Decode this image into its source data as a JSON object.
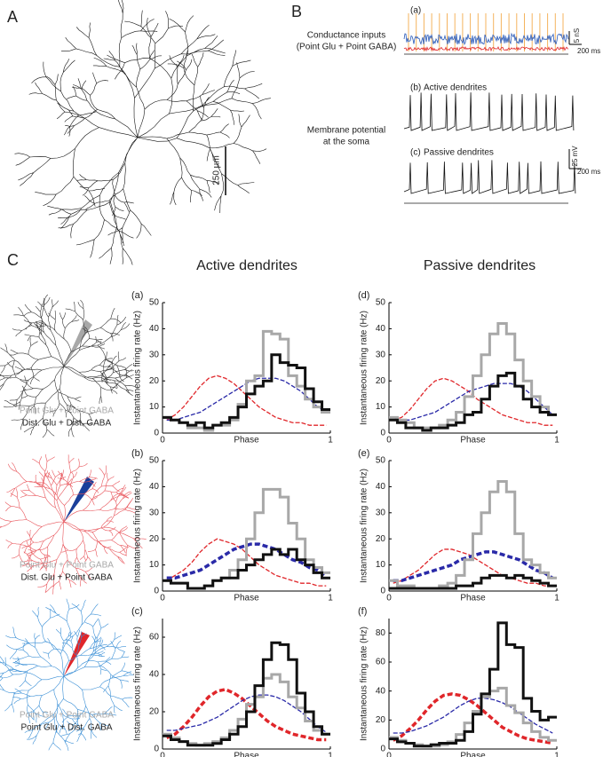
{
  "figure": {
    "panel_labels": [
      "A",
      "B",
      "C"
    ],
    "scale_bar": "250 µm",
    "traces": {
      "label_a": "(a)",
      "conductance_label": [
        "Conductance inputs",
        "(Point Glu + Point GABA)"
      ],
      "conductance_scale": [
        "5 nS",
        "200 ms"
      ],
      "label_b": "(b)",
      "title_b": "Active dendrites",
      "membrane_label": [
        "Membrane potential",
        "at the soma"
      ],
      "label_c": "(c)",
      "title_c": "Passive dendrites",
      "voltage_scale": [
        "25 mV",
        "200 ms"
      ]
    },
    "column_titles": [
      "Active dendrites",
      "Passive dendrites"
    ],
    "row_legends": [
      [
        "Point Glu + Point GABA",
        "Dist. Glu + Dist. GABA"
      ],
      [
        "Point Glu + Point GABA",
        "Dist. Glu + Point GABA"
      ],
      [
        "Point Glu + Point GABA",
        "Point Glu + Dist. GABA"
      ]
    ]
  },
  "chart_data": [
    {
      "type": "line",
      "panel": "(a)",
      "ylabel": "Instantaneous firing rate (Hz)",
      "xlabel": "Phase",
      "x": [
        0.025,
        0.075,
        0.125,
        0.175,
        0.225,
        0.275,
        0.325,
        0.375,
        0.425,
        0.475,
        0.525,
        0.575,
        0.625,
        0.675,
        0.725,
        0.775,
        0.825,
        0.875,
        0.925,
        0.975
      ],
      "xlim": [
        0,
        1
      ],
      "xticks": [
        0,
        1
      ],
      "ylim": [
        0,
        50
      ],
      "yticks": [
        0,
        10,
        20,
        30,
        40,
        50
      ],
      "series": [
        {
          "color": "#e0262a",
          "style": "dashed",
          "width": 1.3,
          "values": [
            5,
            7,
            10,
            14,
            18,
            21,
            22,
            21,
            19,
            16,
            13,
            10,
            8,
            6,
            5,
            4,
            4,
            3,
            3,
            3
          ]
        },
        {
          "color": "#2a2aa8",
          "style": "dashed",
          "width": 1.3,
          "values": [
            5,
            5,
            6,
            7,
            8,
            10,
            12,
            14,
            16,
            18,
            20,
            21,
            21,
            21,
            20,
            18,
            16,
            13,
            10,
            8
          ]
        },
        {
          "color": "#a8a8a8",
          "style": "step",
          "width": 3,
          "values": [
            6,
            5,
            4,
            2,
            2,
            1,
            3,
            3,
            5,
            11,
            20,
            22,
            39,
            38,
            36,
            22,
            18,
            13,
            10,
            8
          ]
        },
        {
          "color": "#111111",
          "style": "step",
          "width": 3,
          "values": [
            6,
            5,
            4,
            3,
            4,
            2,
            3,
            4,
            6,
            10,
            15,
            18,
            20,
            30,
            27,
            26,
            25,
            17,
            12,
            9
          ]
        }
      ]
    },
    {
      "type": "line",
      "panel": "(b)",
      "ylabel": "Instantaneous firing rate (Hz)",
      "xlabel": "Phase",
      "x": [
        0.025,
        0.075,
        0.125,
        0.175,
        0.225,
        0.275,
        0.325,
        0.375,
        0.425,
        0.475,
        0.525,
        0.575,
        0.625,
        0.675,
        0.725,
        0.775,
        0.825,
        0.875,
        0.925,
        0.975
      ],
      "xlim": [
        0,
        1
      ],
      "xticks": [
        0,
        1
      ],
      "ylim": [
        0,
        50
      ],
      "yticks": [
        0,
        10,
        20,
        30,
        40,
        50
      ],
      "series": [
        {
          "color": "#e0262a",
          "style": "dashed",
          "width": 1.3,
          "values": [
            4,
            6,
            8,
            11,
            15,
            18,
            20,
            19,
            18,
            16,
            13,
            10,
            8,
            6,
            5,
            4,
            3,
            3,
            2,
            2
          ]
        },
        {
          "color": "#2a2aa8",
          "style": "dashed",
          "width": 3.5,
          "values": [
            5,
            5,
            6,
            7,
            8,
            10,
            12,
            14,
            16,
            17,
            18,
            18,
            17,
            16,
            14,
            12,
            11,
            9,
            8,
            6
          ]
        },
        {
          "color": "#a8a8a8",
          "style": "step",
          "width": 3,
          "values": [
            4,
            3,
            3,
            1,
            1,
            2,
            4,
            5,
            8,
            12,
            20,
            30,
            39,
            39,
            36,
            26,
            20,
            12,
            9,
            7
          ]
        },
        {
          "color": "#111111",
          "style": "step",
          "width": 3,
          "values": [
            4,
            3,
            3,
            1,
            1,
            2,
            4,
            5,
            5,
            8,
            10,
            12,
            14,
            16,
            14,
            16,
            12,
            10,
            7,
            5
          ]
        }
      ]
    },
    {
      "type": "line",
      "panel": "(c)",
      "ylabel": "Instantaneous firing rate (Hz)",
      "xlabel": "Phase",
      "x": [
        0.025,
        0.075,
        0.125,
        0.175,
        0.225,
        0.275,
        0.325,
        0.375,
        0.425,
        0.475,
        0.525,
        0.575,
        0.625,
        0.675,
        0.725,
        0.775,
        0.825,
        0.875,
        0.925,
        0.975
      ],
      "xlim": [
        0,
        1
      ],
      "xticks": [
        0,
        1
      ],
      "ylim": [
        0,
        70
      ],
      "yticks": [
        0,
        20,
        40,
        60
      ],
      "series": [
        {
          "color": "#e0262a",
          "style": "dashed",
          "width": 3.5,
          "values": [
            6,
            8,
            12,
            17,
            23,
            28,
            31,
            32,
            30,
            27,
            23,
            19,
            15,
            12,
            10,
            8,
            7,
            6,
            5,
            5
          ]
        },
        {
          "color": "#2a2aa8",
          "style": "dashed",
          "width": 1.3,
          "values": [
            10,
            10,
            11,
            12,
            13,
            15,
            17,
            20,
            23,
            26,
            28,
            29,
            29,
            28,
            26,
            23,
            20,
            16,
            12,
            9
          ]
        },
        {
          "color": "#a8a8a8",
          "style": "step",
          "width": 3,
          "values": [
            8,
            6,
            4,
            3,
            2,
            3,
            4,
            6,
            10,
            16,
            24,
            28,
            38,
            40,
            36,
            28,
            22,
            15,
            10,
            8
          ]
        },
        {
          "color": "#111111",
          "style": "step",
          "width": 3,
          "values": [
            7,
            5,
            4,
            2,
            2,
            2,
            3,
            5,
            8,
            12,
            20,
            34,
            48,
            57,
            56,
            48,
            30,
            20,
            12,
            8
          ]
        }
      ]
    },
    {
      "type": "line",
      "panel": "(d)",
      "ylabel": "Instantaneous firing rate (Hz)",
      "xlabel": "Phase",
      "x": [
        0.025,
        0.075,
        0.125,
        0.175,
        0.225,
        0.275,
        0.325,
        0.375,
        0.425,
        0.475,
        0.525,
        0.575,
        0.625,
        0.675,
        0.725,
        0.775,
        0.825,
        0.875,
        0.925,
        0.975
      ],
      "xlim": [
        0,
        1
      ],
      "xticks": [
        0,
        1
      ],
      "ylim": [
        0,
        50
      ],
      "yticks": [
        0,
        10,
        20,
        30,
        40,
        50
      ],
      "series": [
        {
          "color": "#e0262a",
          "style": "dashed",
          "width": 1.3,
          "values": [
            5,
            6,
            9,
            13,
            17,
            20,
            21,
            20,
            18,
            16,
            13,
            11,
            9,
            7,
            6,
            5,
            4,
            4,
            3,
            3
          ]
        },
        {
          "color": "#2a2aa8",
          "style": "dashed",
          "width": 1.3,
          "values": [
            6,
            5,
            5,
            6,
            7,
            8,
            10,
            12,
            14,
            16,
            17,
            18,
            19,
            19,
            19,
            18,
            16,
            13,
            10,
            7
          ]
        },
        {
          "color": "#a8a8a8",
          "style": "step",
          "width": 3,
          "values": [
            6,
            5,
            4,
            2,
            2,
            2,
            3,
            5,
            8,
            14,
            22,
            30,
            38,
            42,
            38,
            28,
            20,
            14,
            10,
            7
          ]
        },
        {
          "color": "#111111",
          "style": "step",
          "width": 3,
          "values": [
            5,
            4,
            2,
            2,
            1,
            2,
            2,
            3,
            4,
            7,
            8,
            13,
            18,
            22,
            23,
            18,
            13,
            10,
            8,
            7
          ]
        }
      ]
    },
    {
      "type": "line",
      "panel": "(e)",
      "ylabel": "Instantaneous firing rate (Hz)",
      "xlabel": "Phase",
      "x": [
        0.025,
        0.075,
        0.125,
        0.175,
        0.225,
        0.275,
        0.325,
        0.375,
        0.425,
        0.475,
        0.525,
        0.575,
        0.625,
        0.675,
        0.725,
        0.775,
        0.825,
        0.875,
        0.925,
        0.975
      ],
      "xlim": [
        0,
        1
      ],
      "xticks": [
        0,
        1
      ],
      "ylim": [
        0,
        50
      ],
      "yticks": [
        0,
        10,
        20,
        30,
        40,
        50
      ],
      "series": [
        {
          "color": "#e0262a",
          "style": "dashed",
          "width": 1.3,
          "values": [
            3,
            4,
            6,
            8,
            11,
            14,
            16,
            16,
            15,
            14,
            12,
            10,
            8,
            6,
            5,
            4,
            3,
            3,
            2,
            2
          ]
        },
        {
          "color": "#2a2aa8",
          "style": "dashed",
          "width": 3.5,
          "values": [
            4,
            4,
            5,
            6,
            7,
            8,
            9,
            10,
            12,
            13,
            14,
            15,
            15,
            14,
            13,
            12,
            10,
            8,
            7,
            5
          ]
        },
        {
          "color": "#a8a8a8",
          "style": "step",
          "width": 3,
          "values": [
            4,
            2,
            2,
            1,
            1,
            1,
            2,
            3,
            6,
            12,
            22,
            30,
            38,
            42,
            38,
            22,
            12,
            10,
            7,
            5
          ]
        },
        {
          "color": "#111111",
          "style": "step",
          "width": 3,
          "values": [
            1,
            1,
            1,
            1,
            1,
            1,
            1,
            1,
            2,
            2,
            3,
            5,
            6,
            6,
            5,
            6,
            5,
            4,
            3,
            2
          ]
        }
      ]
    },
    {
      "type": "line",
      "panel": "(f)",
      "ylabel": "Instantaneous firing rate (Hz)",
      "xlabel": "Phase",
      "x": [
        0.025,
        0.075,
        0.125,
        0.175,
        0.225,
        0.275,
        0.325,
        0.375,
        0.425,
        0.475,
        0.525,
        0.575,
        0.625,
        0.675,
        0.725,
        0.775,
        0.825,
        0.875,
        0.925,
        0.975
      ],
      "xlim": [
        0,
        1
      ],
      "xticks": [
        0,
        1
      ],
      "ylim": [
        0,
        90
      ],
      "yticks": [
        0,
        20,
        40,
        60,
        80
      ],
      "series": [
        {
          "color": "#e0262a",
          "style": "dashed",
          "width": 3.5,
          "values": [
            6,
            9,
            14,
            20,
            27,
            33,
            37,
            38,
            37,
            34,
            30,
            25,
            20,
            15,
            12,
            9,
            7,
            6,
            5,
            4
          ]
        },
        {
          "color": "#2a2aa8",
          "style": "dashed",
          "width": 1.3,
          "values": [
            11,
            11,
            12,
            14,
            16,
            19,
            22,
            26,
            30,
            33,
            35,
            35,
            34,
            32,
            29,
            25,
            21,
            17,
            14,
            11
          ]
        },
        {
          "color": "#a8a8a8",
          "style": "step",
          "width": 3,
          "values": [
            8,
            6,
            4,
            3,
            2,
            2,
            3,
            5,
            10,
            18,
            26,
            36,
            40,
            42,
            30,
            25,
            18,
            12,
            8,
            6
          ]
        },
        {
          "color": "#111111",
          "style": "step",
          "width": 3,
          "values": [
            7,
            5,
            4,
            2,
            2,
            3,
            4,
            4,
            6,
            12,
            24,
            38,
            55,
            87,
            72,
            70,
            35,
            26,
            20,
            22
          ]
        }
      ]
    }
  ]
}
